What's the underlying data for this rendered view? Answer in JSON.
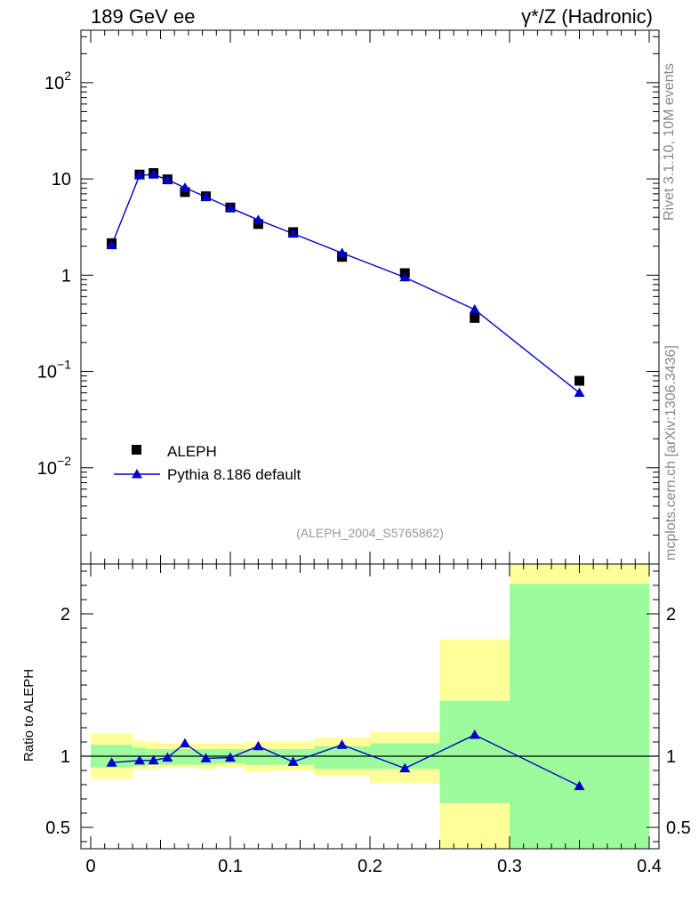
{
  "header": {
    "left": "189 GeV ee",
    "right": "γ*/Z (Hadronic)"
  },
  "side_labels": {
    "top": "Rivet 3.1.10,  10M events",
    "bottom": "mcplots.cern.ch [arXiv:1306.3436]"
  },
  "chart_data": [
    {
      "type": "scatter",
      "panel": "main",
      "title": "",
      "xlabel": "",
      "ylabel": "",
      "yscale": "log",
      "ylim": [
        0.001,
        350
      ],
      "xlim": [
        0,
        0.4
      ],
      "ytick_labels": [
        "10⁻²",
        "10⁻¹",
        "1",
        "10",
        "10²"
      ],
      "ytick_values": [
        0.01,
        0.1,
        1,
        10,
        100
      ],
      "annotation": "(ALEPH_2004_S5765862)",
      "legend": {
        "placement": "bottom-left",
        "entries": [
          "ALEPH",
          "Pythia 8.186 default"
        ]
      },
      "series": [
        {
          "name": "ALEPH",
          "marker": "square",
          "color": "#000000",
          "x": [
            0.015,
            0.035,
            0.045,
            0.055,
            0.0675,
            0.0825,
            0.1,
            0.12,
            0.145,
            0.18,
            0.225,
            0.275,
            0.35
          ],
          "y": [
            2.15,
            11.1,
            11.5,
            9.9,
            7.3,
            6.6,
            5.05,
            3.4,
            2.8,
            1.55,
            1.05,
            0.36,
            0.08
          ]
        },
        {
          "name": "Pythia 8.186 default",
          "marker": "triangle",
          "color": "#0000cc",
          "x": [
            0.015,
            0.035,
            0.045,
            0.055,
            0.0675,
            0.0825,
            0.1,
            0.12,
            0.145,
            0.18,
            0.225,
            0.275,
            0.35
          ],
          "y": [
            2.05,
            10.9,
            11.1,
            9.8,
            8.1,
            6.5,
            5.0,
            3.75,
            2.7,
            1.7,
            0.95,
            0.44,
            0.06
          ]
        }
      ]
    },
    {
      "type": "line",
      "panel": "ratio",
      "title": "",
      "xlabel": "",
      "ylabel": "Ratio to ALEPH",
      "ylim": [
        0.35,
        2.35
      ],
      "xlim": [
        0,
        0.4
      ],
      "ytick_labels": [
        "0.5",
        "1",
        "2"
      ],
      "ytick_values": [
        0.5,
        1,
        2
      ],
      "xtick_labels": [
        "0",
        "0.1",
        "0.2",
        "0.3",
        "0.4"
      ],
      "xtick_values": [
        0,
        0.1,
        0.2,
        0.3,
        0.4
      ],
      "reference_line": 1,
      "bands": {
        "colors": {
          "inner": "#9cfc9c",
          "outer": "#ffff99"
        },
        "bins": [
          {
            "x0": 0.0,
            "x1": 0.03,
            "inner": [
              0.92,
              1.08
            ],
            "outer": [
              0.84,
              1.16
            ]
          },
          {
            "x0": 0.03,
            "x1": 0.04,
            "inner": [
              0.93,
              1.06
            ],
            "outer": [
              0.91,
              1.11
            ]
          },
          {
            "x0": 0.04,
            "x1": 0.05,
            "inner": [
              0.94,
              1.05
            ],
            "outer": [
              0.91,
              1.1
            ]
          },
          {
            "x0": 0.05,
            "x1": 0.06,
            "inner": [
              0.94,
              1.05
            ],
            "outer": [
              0.92,
              1.09
            ]
          },
          {
            "x0": 0.06,
            "x1": 0.075,
            "inner": [
              0.94,
              1.05
            ],
            "outer": [
              0.92,
              1.09
            ]
          },
          {
            "x0": 0.075,
            "x1": 0.09,
            "inner": [
              0.94,
              1.05
            ],
            "outer": [
              0.91,
              1.09
            ]
          },
          {
            "x0": 0.09,
            "x1": 0.11,
            "inner": [
              0.95,
              1.05
            ],
            "outer": [
              0.92,
              1.09
            ]
          },
          {
            "x0": 0.11,
            "x1": 0.13,
            "inner": [
              0.94,
              1.05
            ],
            "outer": [
              0.89,
              1.1
            ]
          },
          {
            "x0": 0.13,
            "x1": 0.16,
            "inner": [
              0.94,
              1.05
            ],
            "outer": [
              0.9,
              1.1
            ]
          },
          {
            "x0": 0.16,
            "x1": 0.2,
            "inner": [
              0.91,
              1.07
            ],
            "outer": [
              0.86,
              1.13
            ]
          },
          {
            "x0": 0.2,
            "x1": 0.25,
            "inner": [
              0.91,
              1.09
            ],
            "outer": [
              0.81,
              1.17
            ]
          },
          {
            "x0": 0.25,
            "x1": 0.3,
            "inner": [
              0.67,
              1.39
            ],
            "outer": [
              0.35,
              1.82
            ]
          },
          {
            "x0": 0.3,
            "x1": 0.4,
            "inner": [
              0.35,
              2.21
            ],
            "outer": [
              0.35,
              2.35
            ]
          }
        ]
      },
      "series": [
        {
          "name": "Pythia 8.186 default",
          "marker": "triangle",
          "color": "#0000cc",
          "x": [
            0.015,
            0.035,
            0.045,
            0.055,
            0.0675,
            0.0825,
            0.1,
            0.12,
            0.145,
            0.18,
            0.225,
            0.275,
            0.35
          ],
          "y": [
            0.955,
            0.97,
            0.97,
            0.99,
            1.09,
            0.985,
            0.99,
            1.07,
            0.96,
            1.08,
            0.915,
            1.15,
            0.79
          ]
        }
      ]
    }
  ]
}
